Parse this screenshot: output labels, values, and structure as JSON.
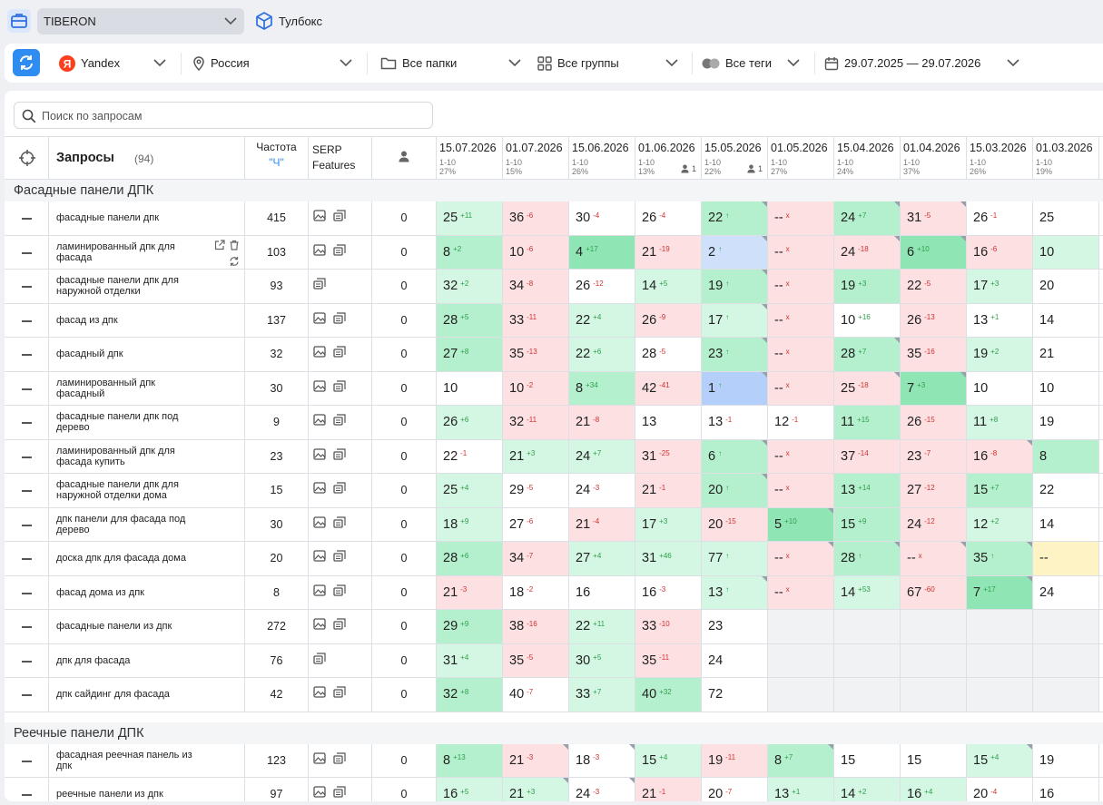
{
  "topbar": {
    "project": "TIBERON",
    "toolbox": "Тулбокс"
  },
  "filters": {
    "engine": "Yandex",
    "region": "Россия",
    "folders": "Все папки",
    "groups": "Все группы",
    "tags": "Все теги",
    "dates": "29.07.2025 — 29.07.2026"
  },
  "search": {
    "placeholder": "Поиск по запросам"
  },
  "header": {
    "queries": "Запросы",
    "count": "(94)",
    "freq": "Частота",
    "freq_sub": "\"Ч\"",
    "serp": "SERP Features"
  },
  "dates": [
    {
      "d": "15.07.2026",
      "r": "1-10",
      "p": "27%",
      "u": ""
    },
    {
      "d": "01.07.2026",
      "r": "1-10",
      "p": "15%",
      "u": ""
    },
    {
      "d": "15.06.2026",
      "r": "1-10",
      "p": "26%",
      "u": ""
    },
    {
      "d": "01.06.2026",
      "r": "1-10",
      "p": "13%",
      "u": "1"
    },
    {
      "d": "15.05.2026",
      "r": "1-10",
      "p": "22%",
      "u": "1"
    },
    {
      "d": "01.05.2026",
      "r": "1-10",
      "p": "27%",
      "u": ""
    },
    {
      "d": "15.04.2026",
      "r": "1-10",
      "p": "24%",
      "u": ""
    },
    {
      "d": "01.04.2026",
      "r": "1-10",
      "p": "37%",
      "u": ""
    },
    {
      "d": "15.03.2026",
      "r": "1-10",
      "p": "26%",
      "u": ""
    },
    {
      "d": "01.03.2026",
      "r": "1-10",
      "p": "19%",
      "u": ""
    }
  ],
  "groups": [
    {
      "name": "Фасадные панели ДПК",
      "rows": [
        {
          "q": "фасадные панели дпк",
          "f": "415",
          "s": "ii",
          "u": "0",
          "c": [
            [
              "25",
              "+11",
              "g1"
            ],
            [
              "36",
              "-6",
              "r1"
            ],
            [
              "30",
              "-4",
              "w"
            ],
            [
              "26",
              "-4",
              "w"
            ],
            [
              "22",
              "↑",
              "g2t"
            ],
            [
              "--",
              "x",
              "r1"
            ],
            [
              "24",
              "+7",
              "g2t"
            ],
            [
              "31",
              "-5",
              "r1t"
            ],
            [
              "26",
              "-1",
              "w"
            ],
            [
              "25",
              "",
              "w"
            ]
          ]
        },
        {
          "q": "ламинированный дпк для фасада",
          "f": "103",
          "s": "ii",
          "u": "0",
          "a": true,
          "c": [
            [
              "8",
              "+2",
              "g2"
            ],
            [
              "10",
              "-6",
              "r1"
            ],
            [
              "4",
              "+17",
              "g3"
            ],
            [
              "21",
              "-19",
              "r1"
            ],
            [
              "2",
              "↑",
              "b1t"
            ],
            [
              "--",
              "x",
              "r1"
            ],
            [
              "24",
              "-18",
              "r1t"
            ],
            [
              "6",
              "+10",
              "g3t"
            ],
            [
              "16",
              "-6",
              "r1"
            ],
            [
              "10",
              "",
              "g1"
            ]
          ]
        },
        {
          "q": "фасадные панели дпк для наружной отделки",
          "f": "93",
          "s": "s",
          "u": "0",
          "c": [
            [
              "32",
              "+2",
              "g1"
            ],
            [
              "34",
              "-8",
              "r1"
            ],
            [
              "26",
              "-12",
              "w"
            ],
            [
              "14",
              "+5",
              "g1"
            ],
            [
              "19",
              "↑",
              "g2t"
            ],
            [
              "--",
              "x",
              "r1"
            ],
            [
              "19",
              "+3",
              "g2"
            ],
            [
              "22",
              "-5",
              "r1"
            ],
            [
              "17",
              "+3",
              "g1"
            ],
            [
              "20",
              "",
              "w"
            ]
          ]
        },
        {
          "q": "фасад из дпк",
          "f": "137",
          "s": "ii",
          "u": "0",
          "c": [
            [
              "28",
              "+5",
              "g2"
            ],
            [
              "33",
              "-11",
              "r1"
            ],
            [
              "22",
              "+4",
              "g1"
            ],
            [
              "26",
              "-9",
              "r1"
            ],
            [
              "17",
              "↑",
              "g1t"
            ],
            [
              "--",
              "x",
              "r1"
            ],
            [
              "10",
              "+16",
              "w"
            ],
            [
              "26",
              "-13",
              "r1"
            ],
            [
              "13",
              "+1",
              "w"
            ],
            [
              "14",
              "",
              "w"
            ]
          ]
        },
        {
          "q": "фасадный дпк",
          "f": "32",
          "s": "ii",
          "u": "0",
          "c": [
            [
              "27",
              "+8",
              "g2"
            ],
            [
              "35",
              "-13",
              "r1"
            ],
            [
              "22",
              "+6",
              "g1"
            ],
            [
              "28",
              "-5",
              "w"
            ],
            [
              "23",
              "↑",
              "g2t"
            ],
            [
              "--",
              "x",
              "r1"
            ],
            [
              "28",
              "+7",
              "g2t"
            ],
            [
              "35",
              "-16",
              "r1"
            ],
            [
              "19",
              "+2",
              "g1"
            ],
            [
              "21",
              "",
              "w"
            ]
          ]
        },
        {
          "q": "ламинированный дпк фасадный",
          "f": "30",
          "s": "ii",
          "u": "0",
          "c": [
            [
              "10",
              "",
              "w"
            ],
            [
              "10",
              "-2",
              "r1"
            ],
            [
              "8",
              "+34",
              "g2"
            ],
            [
              "42",
              "-41",
              "r1"
            ],
            [
              "1",
              "↑",
              "b2t"
            ],
            [
              "--",
              "x",
              "r1"
            ],
            [
              "25",
              "-18",
              "r1t"
            ],
            [
              "7",
              "+3",
              "g3t"
            ],
            [
              "10",
              "",
              "w"
            ],
            [
              "10",
              "",
              "w"
            ]
          ]
        },
        {
          "q": "фасадные панели дпк под дерево",
          "f": "9",
          "s": "ii",
          "u": "0",
          "c": [
            [
              "26",
              "+6",
              "g1"
            ],
            [
              "32",
              "-11",
              "r1"
            ],
            [
              "21",
              "-8",
              "r1"
            ],
            [
              "13",
              "",
              "w"
            ],
            [
              "13",
              "-1",
              "w"
            ],
            [
              "12",
              "-1",
              "w"
            ],
            [
              "11",
              "+15",
              "g2"
            ],
            [
              "26",
              "-15",
              "r1"
            ],
            [
              "11",
              "+8",
              "g1"
            ],
            [
              "19",
              "",
              "w"
            ]
          ]
        },
        {
          "q": "ламинированный дпк для фасада купить",
          "f": "23",
          "s": "ii",
          "u": "0",
          "c": [
            [
              "22",
              "-1",
              "w"
            ],
            [
              "21",
              "+3",
              "g1"
            ],
            [
              "24",
              "+7",
              "g1"
            ],
            [
              "31",
              "-25",
              "r1"
            ],
            [
              "6",
              "↑",
              "g2t"
            ],
            [
              "--",
              "x",
              "r1"
            ],
            [
              "37",
              "-14",
              "r1"
            ],
            [
              "23",
              "-7",
              "r1"
            ],
            [
              "16",
              "-8",
              "r1t"
            ],
            [
              "8",
              "",
              "g2"
            ]
          ]
        },
        {
          "q": "фасадные панели дпк для наружной отделки дома",
          "f": "15",
          "s": "ii",
          "u": "0",
          "c": [
            [
              "25",
              "+4",
              "g1"
            ],
            [
              "29",
              "-5",
              "w"
            ],
            [
              "24",
              "-3",
              "w"
            ],
            [
              "21",
              "-1",
              "r1"
            ],
            [
              "20",
              "↑",
              "g2t"
            ],
            [
              "--",
              "x",
              "r1"
            ],
            [
              "13",
              "+14",
              "g2"
            ],
            [
              "27",
              "-12",
              "r1"
            ],
            [
              "15",
              "+7",
              "g2"
            ],
            [
              "22",
              "",
              "w"
            ]
          ]
        },
        {
          "q": "дпк панели для фасада под дерево",
          "f": "30",
          "s": "ii",
          "u": "0",
          "c": [
            [
              "18",
              "+9",
              "g1"
            ],
            [
              "27",
              "-6",
              "w"
            ],
            [
              "21",
              "-4",
              "r1"
            ],
            [
              "17",
              "+3",
              "g1"
            ],
            [
              "20",
              "-15",
              "r1"
            ],
            [
              "5",
              "+10",
              "g3t"
            ],
            [
              "15",
              "+9",
              "g2"
            ],
            [
              "24",
              "-12",
              "r1"
            ],
            [
              "12",
              "+2",
              "g1"
            ],
            [
              "14",
              "",
              "w"
            ]
          ]
        },
        {
          "q": "доска дпк для фасада дома",
          "f": "20",
          "s": "ii",
          "u": "0",
          "c": [
            [
              "28",
              "+6",
              "g2"
            ],
            [
              "34",
              "-7",
              "r1"
            ],
            [
              "27",
              "+4",
              "g1"
            ],
            [
              "31",
              "+46",
              "g1"
            ],
            [
              "77",
              "↑",
              "g1"
            ],
            [
              "--",
              "x",
              "r1t"
            ],
            [
              "28",
              "↑",
              "g2t"
            ],
            [
              "--",
              "x",
              "r1t"
            ],
            [
              "35",
              "↑",
              "g2t"
            ],
            [
              "--",
              "",
              "y1"
            ]
          ]
        },
        {
          "q": "фасад дома из дпк",
          "f": "8",
          "s": "ii",
          "u": "0",
          "c": [
            [
              "21",
              "-3",
              "r1"
            ],
            [
              "18",
              "-2",
              "w"
            ],
            [
              "16",
              "",
              "w"
            ],
            [
              "16",
              "-3",
              "w"
            ],
            [
              "13",
              "↑",
              "g1t"
            ],
            [
              "--",
              "x",
              "r1"
            ],
            [
              "14",
              "+53",
              "g1"
            ],
            [
              "67",
              "-60",
              "r1"
            ],
            [
              "7",
              "+17",
              "g3t"
            ],
            [
              "24",
              "",
              "w"
            ]
          ]
        },
        {
          "q": "фасадные панели из дпк",
          "f": "272",
          "s": "ii",
          "u": "0",
          "c": [
            [
              "29",
              "+9",
              "g2"
            ],
            [
              "38",
              "-16",
              "r1"
            ],
            [
              "22",
              "+11",
              "g1"
            ],
            [
              "33",
              "-10",
              "r1"
            ],
            [
              "23",
              "",
              "w"
            ],
            [
              "",
              "",
              "gr"
            ],
            [
              "",
              "",
              "gr"
            ],
            [
              "",
              "",
              "gr"
            ],
            [
              "",
              "",
              "gr"
            ],
            [
              "",
              "",
              "gr"
            ]
          ]
        },
        {
          "q": "дпк для фасада",
          "f": "76",
          "s": "s",
          "u": "0",
          "c": [
            [
              "31",
              "+4",
              "g1"
            ],
            [
              "35",
              "-5",
              "r1"
            ],
            [
              "30",
              "+5",
              "g1"
            ],
            [
              "35",
              "-11",
              "r1"
            ],
            [
              "24",
              "",
              "w"
            ],
            [
              "",
              "",
              "gr"
            ],
            [
              "",
              "",
              "gr"
            ],
            [
              "",
              "",
              "gr"
            ],
            [
              "",
              "",
              "gr"
            ],
            [
              "",
              "",
              "gr"
            ]
          ]
        },
        {
          "q": "дпк сайдинг для фасада",
          "f": "42",
          "s": "ii",
          "u": "0",
          "c": [
            [
              "32",
              "+8",
              "g2"
            ],
            [
              "40",
              "-7",
              "w"
            ],
            [
              "33",
              "+7",
              "g1"
            ],
            [
              "40",
              "+32",
              "g2"
            ],
            [
              "72",
              "",
              "w"
            ],
            [
              "",
              "",
              "gr"
            ],
            [
              "",
              "",
              "gr"
            ],
            [
              "",
              "",
              "gr"
            ],
            [
              "",
              "",
              "gr"
            ],
            [
              "",
              "",
              "gr"
            ]
          ]
        }
      ]
    },
    {
      "name": "Реечные панели ДПК",
      "rows": [
        {
          "q": "фасадная реечная панель из дпк",
          "f": "123",
          "s": "ii",
          "u": "0",
          "c": [
            [
              "8",
              "+13",
              "g2"
            ],
            [
              "21",
              "-3",
              "r1t"
            ],
            [
              "18",
              "-3",
              "wt"
            ],
            [
              "15",
              "+4",
              "g1"
            ],
            [
              "19",
              "-11",
              "r1"
            ],
            [
              "8",
              "+7",
              "g2t"
            ],
            [
              "15",
              "",
              "w"
            ],
            [
              "15",
              "",
              "w"
            ],
            [
              "15",
              "+4",
              "g1t"
            ],
            [
              "19",
              "",
              "w"
            ]
          ]
        },
        {
          "q": "реечные панели из дпк",
          "f": "97",
          "s": "ii",
          "u": "0",
          "c": [
            [
              "16",
              "+5",
              "g1"
            ],
            [
              "21",
              "+3",
              "g1t"
            ],
            [
              "24",
              "-3",
              "wt"
            ],
            [
              "21",
              "-1",
              "r1"
            ],
            [
              "20",
              "-7",
              "w"
            ],
            [
              "13",
              "+1",
              "g1"
            ],
            [
              "14",
              "+2",
              "g1"
            ],
            [
              "16",
              "+4",
              "g1"
            ],
            [
              "20",
              "-4",
              "w"
            ],
            [
              "16",
              "",
              "w"
            ]
          ]
        }
      ]
    }
  ]
}
